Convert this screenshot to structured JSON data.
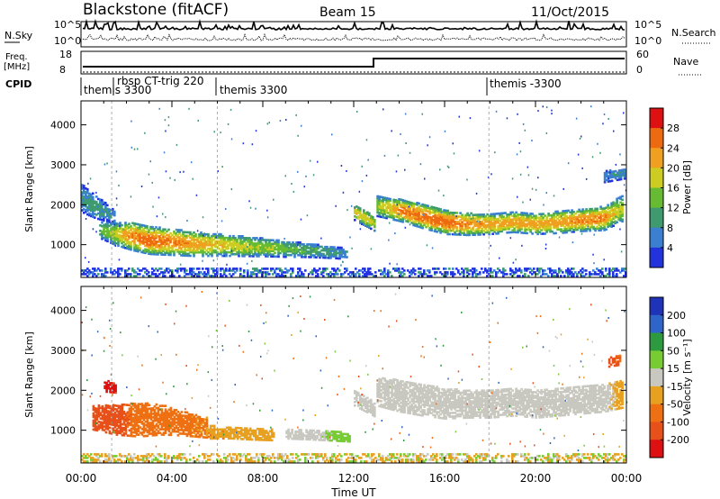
{
  "header": {
    "station": "Blackstone (fitACF)",
    "beam": "Beam 15",
    "date": "11/Oct/2015"
  },
  "left_labels": {
    "nsky": "N.Sky",
    "freq": "Freq.",
    "freq_unit": "[MHz]",
    "cpid": "CPID"
  },
  "right_labels": {
    "nsearch": "N.Search",
    "nave": "Nave"
  },
  "nsky_ticks": [
    "10^5",
    "10^0"
  ],
  "nsearch_ticks": [
    "10^5",
    "10^0"
  ],
  "freq_ticks": [
    "18",
    "8"
  ],
  "nave_ticks": [
    "60",
    "0"
  ],
  "cpid_entries": [
    "themis 3300",
    "rbsp CT-trig 220",
    "themis 3300",
    "themis -3300"
  ],
  "colors": {
    "power_scale": [
      "#2233dd",
      "#3a7fd0",
      "#3f9a70",
      "#66bb33",
      "#cccc22",
      "#f0a020",
      "#ee6a10",
      "#dd1111"
    ],
    "velocity_scale": [
      "#1f33b8",
      "#2f64c8",
      "#2e9a3f",
      "#77cc33",
      "#c8c8c0",
      "#e8a020",
      "#ee7012",
      "#e8501a",
      "#dd1111"
    ]
  },
  "chart_data": [
    {
      "type": "heatmap",
      "panel": "power",
      "xlabel": "Time UT",
      "ylabel": "Slant Range [km]",
      "x_ticks": [
        "00:00",
        "04:00",
        "08:00",
        "12:00",
        "16:00",
        "20:00",
        "00:00"
      ],
      "xlim": [
        0,
        24
      ],
      "ylim": [
        180,
        4600
      ],
      "y_ticks": [
        1000,
        2000,
        3000,
        4000
      ],
      "colorbar": {
        "label": "Power [dB]",
        "ticks": [
          "28",
          "24",
          "20",
          "16",
          "12",
          "8",
          "4"
        ],
        "range": [
          0,
          32
        ]
      },
      "bands": [
        {
          "x": [
            0,
            0.3,
            0.6,
            0.9,
            1.2,
            1.5
          ],
          "center": [
            2150,
            2050,
            1950,
            1850,
            1750,
            1650
          ],
          "width": [
            700,
            650,
            600,
            500,
            400,
            350
          ],
          "peak": [
            8,
            10,
            10,
            9,
            8,
            7
          ]
        },
        {
          "x": [
            0.8,
            1.5,
            2.2,
            3.0,
            4.0,
            5.0,
            6.0,
            7.0,
            8.0,
            9.0,
            10.0,
            11.0,
            11.7
          ],
          "center": [
            1350,
            1250,
            1200,
            1100,
            1050,
            1000,
            980,
            950,
            920,
            880,
            850,
            800,
            750
          ],
          "width": [
            400,
            550,
            700,
            700,
            650,
            600,
            550,
            500,
            450,
            400,
            350,
            300,
            250
          ],
          "peak": [
            12,
            18,
            24,
            26,
            24,
            22,
            20,
            18,
            16,
            14,
            12,
            10,
            8
          ]
        },
        {
          "x": [
            12.0,
            12.5,
            12.9
          ],
          "center": [
            1800,
            1650,
            1500
          ],
          "width": [
            400,
            400,
            350
          ],
          "peak": [
            18,
            20,
            16
          ]
        },
        {
          "x": [
            13.0,
            14.0,
            15.0,
            16.0,
            17.0,
            18.0,
            19.0,
            20.0,
            21.0,
            22.0,
            23.0,
            23.8
          ],
          "center": [
            1950,
            1850,
            1700,
            1550,
            1500,
            1500,
            1550,
            1500,
            1550,
            1600,
            1650,
            1900
          ],
          "width": [
            500,
            550,
            600,
            600,
            550,
            500,
            500,
            500,
            550,
            550,
            600,
            650
          ],
          "peak": [
            16,
            24,
            26,
            26,
            24,
            22,
            22,
            22,
            22,
            24,
            24,
            16
          ]
        },
        {
          "x": [
            23.0,
            23.5,
            24.0
          ],
          "center": [
            2700,
            2750,
            2800
          ],
          "width": [
            300,
            300,
            300
          ],
          "peak": [
            6,
            8,
            8
          ]
        }
      ]
    },
    {
      "type": "heatmap",
      "panel": "velocity",
      "xlabel": "Time UT",
      "ylabel": "Slant Range [km]",
      "x_ticks": [
        "00:00",
        "04:00",
        "08:00",
        "12:00",
        "16:00",
        "20:00",
        "00:00"
      ],
      "xlim": [
        0,
        24
      ],
      "ylim": [
        180,
        4600
      ],
      "y_ticks": [
        1000,
        2000,
        3000,
        4000
      ],
      "colorbar": {
        "label": "Velocity [m s⁻¹]",
        "ticks": [
          "200",
          "100",
          "50",
          "15",
          "-15",
          "-50",
          "-100",
          "-200"
        ],
        "range": [
          -250,
          250
        ]
      },
      "bands": [
        {
          "x": [
            1.0,
            1.5
          ],
          "center": [
            2100,
            2050
          ],
          "width": [
            300,
            250
          ],
          "value": [
            -220,
            -200
          ]
        },
        {
          "x": [
            0.5,
            1.5,
            2.5,
            3.5,
            4.5,
            5.5
          ],
          "center": [
            1300,
            1250,
            1250,
            1250,
            1150,
            1050
          ],
          "width": [
            600,
            750,
            850,
            750,
            600,
            500
          ],
          "value": [
            -150,
            -120,
            -80,
            -70,
            -60,
            -55
          ]
        },
        {
          "x": [
            5.5,
            6.5,
            7.5,
            8.5
          ],
          "center": [
            950,
            930,
            900,
            880
          ],
          "width": [
            350,
            300,
            300,
            300
          ],
          "value": [
            -45,
            -40,
            -35,
            -30
          ]
        },
        {
          "x": [
            9.0,
            10.0,
            11.0,
            11.8
          ],
          "center": [
            900,
            880,
            850,
            800
          ],
          "width": [
            250,
            250,
            250,
            200
          ],
          "value": [
            0,
            0,
            20,
            40
          ]
        },
        {
          "x": [
            12.0,
            12.5,
            12.9
          ],
          "center": [
            1800,
            1650,
            1500
          ],
          "width": [
            400,
            400,
            350
          ],
          "value": [
            0,
            0,
            0
          ]
        },
        {
          "x": [
            13.0,
            14.0,
            15.0,
            16.0,
            17.0,
            18.0,
            19.0,
            20.0,
            21.0,
            22.0,
            23.0,
            23.8
          ],
          "center": [
            1950,
            1850,
            1750,
            1650,
            1650,
            1650,
            1700,
            1650,
            1700,
            1750,
            1800,
            1900
          ],
          "width": [
            700,
            800,
            800,
            750,
            700,
            700,
            700,
            700,
            700,
            700,
            700,
            700
          ],
          "value": [
            0,
            0,
            0,
            0,
            0,
            0,
            0,
            0,
            0,
            0,
            0,
            -30
          ]
        },
        {
          "x": [
            23.2,
            23.7
          ],
          "center": [
            2700,
            2750
          ],
          "width": [
            250,
            250
          ],
          "value": [
            -120,
            -100
          ]
        }
      ]
    }
  ]
}
